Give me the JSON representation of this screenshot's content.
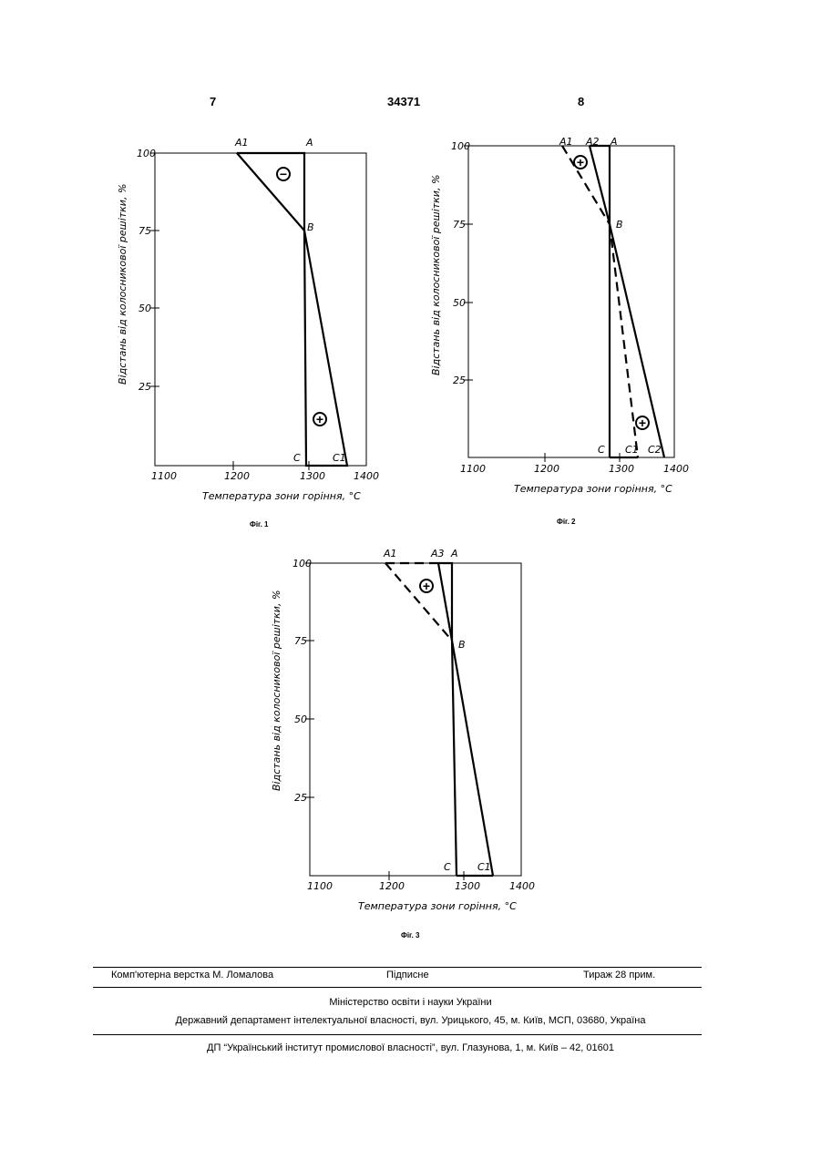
{
  "header": {
    "left_page": "7",
    "patent_number": "34371",
    "right_page": "8"
  },
  "figures": [
    {
      "caption": "Фіг. 1",
      "xlabel": "Температура зони горіння, °С",
      "ylabel": "Відстань від колосникової решітки, %",
      "x_ticks": [
        "1100",
        "1200",
        "1300",
        "1400"
      ],
      "y_ticks": [
        "25",
        "50",
        "75",
        "100"
      ],
      "points": {
        "A": "A",
        "A1": "A1",
        "B": "B",
        "C": "C",
        "C1": "C1"
      },
      "signs": [
        "−",
        "+"
      ]
    },
    {
      "caption": "Фіг. 2",
      "xlabel": "Температура зони горіння, °С",
      "ylabel": "Відстань від колосникової решітки, %",
      "x_ticks": [
        "1100",
        "1200",
        "1300",
        "1400"
      ],
      "y_ticks": [
        "25",
        "50",
        "75",
        "100"
      ],
      "points": {
        "A": "A",
        "A1": "A1",
        "A2": "A2",
        "B": "B",
        "C": "C",
        "C1": "C1",
        "C2": "C2"
      },
      "signs": [
        "+",
        "+"
      ]
    },
    {
      "caption": "Фіг. 3",
      "xlabel": "Температура зони горіння, °С",
      "ylabel": "Відстань від колосникової решітки, %",
      "x_ticks": [
        "1100",
        "1200",
        "1300",
        "1400"
      ],
      "y_ticks": [
        "25",
        "50",
        "75",
        "100"
      ],
      "points": {
        "A": "A",
        "A1": "A1",
        "A3": "A3",
        "B": "B",
        "C": "C",
        "C1": "C1"
      },
      "signs": [
        "+"
      ]
    }
  ],
  "footer": {
    "layout": "Комп'ютерна верстка М. Ломалова",
    "signed": "Підписне",
    "print_run": "Тираж 28 прим.",
    "ministry": "Міністерство освіти і науки України",
    "department": "Державний департамент інтелектуальної власності, вул. Урицького, 45, м. Київ, МСП, 03680, Україна",
    "institute": "ДП “Український інститут промислової власності”, вул. Глазунова, 1, м. Київ – 42, 01601"
  }
}
